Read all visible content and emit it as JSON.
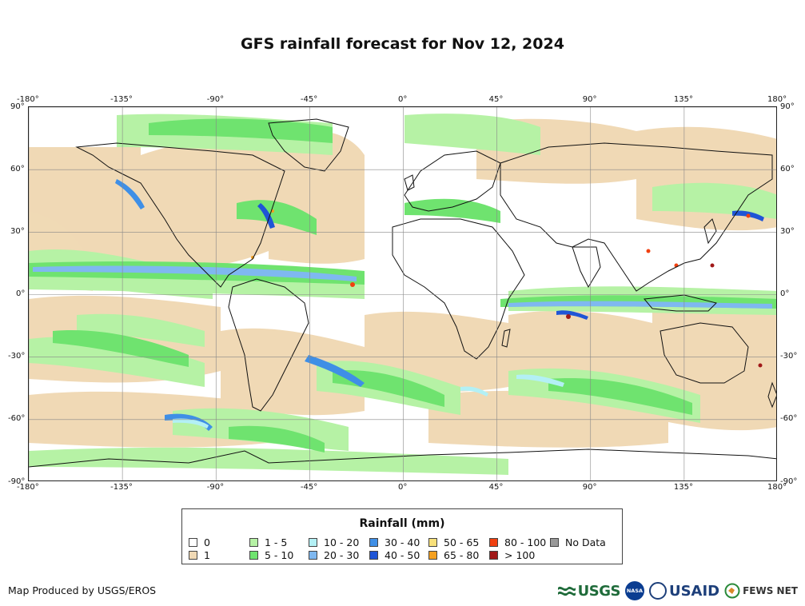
{
  "title": "GFS rainfall forecast for Nov 12, 2024",
  "axes": {
    "lon_labels": [
      "-180°",
      "-135°",
      "-90°",
      "-45°",
      "0°",
      "45°",
      "90°",
      "135°",
      "180°"
    ],
    "lat_labels": [
      "90°",
      "60°",
      "30°",
      "0°",
      "-30°",
      "-60°",
      "-90°"
    ],
    "lon_values": [
      -180,
      -135,
      -90,
      -45,
      0,
      45,
      90,
      135,
      180
    ],
    "lat_values": [
      90,
      60,
      30,
      0,
      -30,
      -60,
      -90
    ]
  },
  "legend": {
    "title": "Rainfall (mm)",
    "items": [
      {
        "label": "0",
        "color": "#ffffff"
      },
      {
        "label": "1",
        "color": "#f0d9b5"
      },
      {
        "label": "1 - 5",
        "color": "#b6f2a5"
      },
      {
        "label": "5 - 10",
        "color": "#6fe36f"
      },
      {
        "label": "10 - 20",
        "color": "#b3f0f5"
      },
      {
        "label": "20 - 30",
        "color": "#7fb8f0"
      },
      {
        "label": "30 - 40",
        "color": "#3f8fe6"
      },
      {
        "label": "40 - 50",
        "color": "#1f55d6"
      },
      {
        "label": "50 - 65",
        "color": "#f8e07a"
      },
      {
        "label": "65 - 80",
        "color": "#f4a020"
      },
      {
        "label": "80 - 100",
        "color": "#f04010"
      },
      {
        "label": "> 100",
        "color": "#a01818"
      },
      {
        "label": "No Data",
        "color": "#999999"
      }
    ]
  },
  "credit": "Map Produced by USGS/EROS",
  "logos": {
    "usgs": "USGS",
    "nasa": "NASA",
    "usaid": "USAID",
    "fews": "FEWS NET"
  }
}
